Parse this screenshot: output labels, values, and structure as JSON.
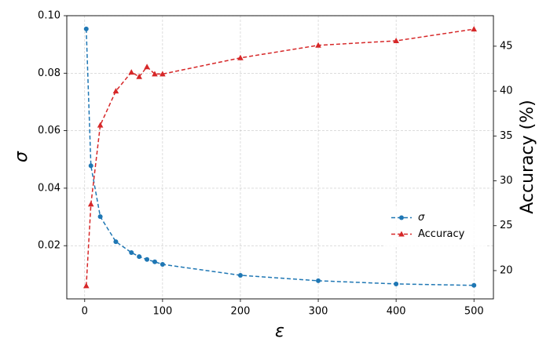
{
  "chart_data": {
    "type": "line",
    "x_label": "ε",
    "y_label": "σ",
    "y2_label": "Accuracy (%)",
    "x": [
      2,
      8,
      20,
      40,
      60,
      70,
      80,
      90,
      100,
      200,
      300,
      400,
      500
    ],
    "series": [
      {
        "name": "σ",
        "color": "#1f77b4",
        "marker": "circle",
        "axis": "y",
        "values": [
          0.0954,
          0.0478,
          0.0301,
          0.0214,
          0.0176,
          0.0162,
          0.0152,
          0.0144,
          0.0135,
          0.0097,
          0.0078,
          0.0067,
          0.0062
        ]
      },
      {
        "name": "Accuracy",
        "color": "#d62728",
        "marker": "triangle",
        "axis": "y2",
        "values": [
          18.3,
          27.4,
          36.2,
          40.0,
          42.1,
          41.6,
          42.7,
          41.9,
          41.9,
          43.7,
          45.1,
          45.6,
          46.9
        ]
      }
    ],
    "xlim": [
      -23,
      525
    ],
    "xticks": [
      0,
      100,
      200,
      300,
      400,
      500
    ],
    "ylim": [
      0.0015,
      0.1
    ],
    "yticks": [
      0.02,
      0.04,
      0.06,
      0.08,
      {
        "value": 0.1,
        "label": "0.10"
      }
    ],
    "y2lim": [
      16.85,
      48.4
    ],
    "y2ticks": [
      20,
      25,
      30,
      35,
      40,
      45
    ],
    "grid": true,
    "legend": "center right"
  }
}
